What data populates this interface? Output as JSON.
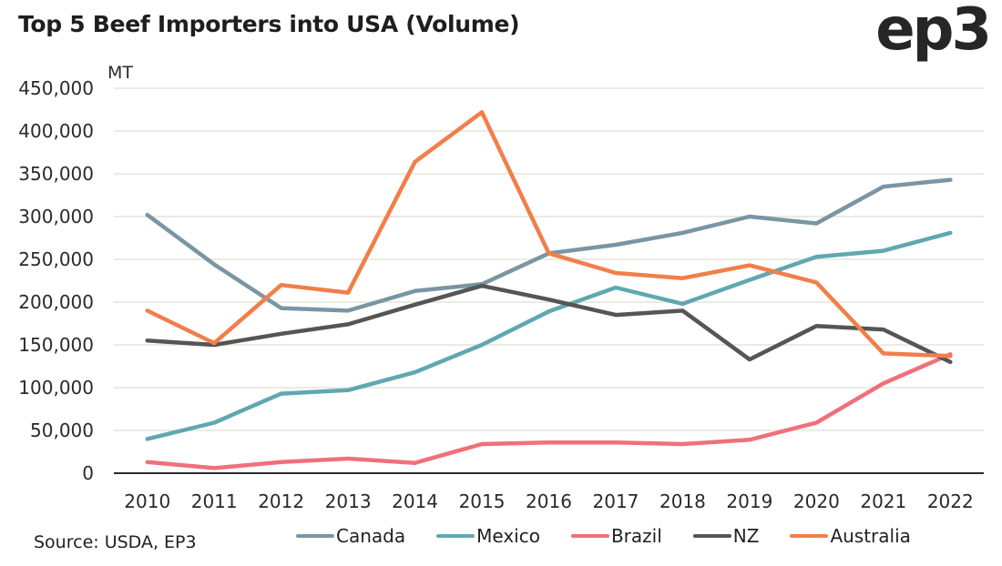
{
  "header": {
    "title": "Top 5 Beef Importers into USA (Volume)",
    "logo": "ep3"
  },
  "footer": {
    "source": "Source: USDA, EP3"
  },
  "chart_data": {
    "type": "line",
    "title": "Top 5 Beef Importers into USA (Volume)",
    "xlabel": "",
    "ylabel": "MT",
    "ylim": [
      0,
      450000
    ],
    "yticks": [
      0,
      50000,
      100000,
      150000,
      200000,
      250000,
      300000,
      350000,
      400000,
      450000
    ],
    "ytick_labels": [
      "0",
      "50,000",
      "100,000",
      "150,000",
      "200,000",
      "250,000",
      "300,000",
      "350,000",
      "400,000",
      "450,000"
    ],
    "grid": true,
    "legend_position": "bottom",
    "x": [
      "2010",
      "2011",
      "2012",
      "2013",
      "2014",
      "2015",
      "2016",
      "2017",
      "2018",
      "2019",
      "2020",
      "2021",
      "2022"
    ],
    "series": [
      {
        "name": "Canada",
        "color": "#7a95a3",
        "values": [
          302000,
          244000,
          193000,
          190000,
          213000,
          221000,
          257000,
          267000,
          281000,
          300000,
          292000,
          335000,
          343000
        ]
      },
      {
        "name": "Mexico",
        "color": "#5fa8b0",
        "values": [
          40000,
          59000,
          93000,
          97000,
          118000,
          150000,
          189000,
          217000,
          198000,
          226000,
          253000,
          260000,
          281000
        ]
      },
      {
        "name": "Brazil",
        "color": "#f0707a",
        "values": [
          13000,
          6000,
          13000,
          17000,
          12000,
          34000,
          36000,
          36000,
          34000,
          39000,
          59000,
          105000,
          139000
        ]
      },
      {
        "name": "NZ",
        "color": "#555555",
        "values": [
          155000,
          150000,
          163000,
          174000,
          197000,
          219000,
          203000,
          185000,
          190000,
          133000,
          172000,
          168000,
          130000
        ]
      },
      {
        "name": "Australia",
        "color": "#f07f4a",
        "values": [
          190000,
          152000,
          220000,
          211000,
          364000,
          422000,
          257000,
          234000,
          228000,
          243000,
          223000,
          140000,
          137000
        ]
      }
    ]
  }
}
